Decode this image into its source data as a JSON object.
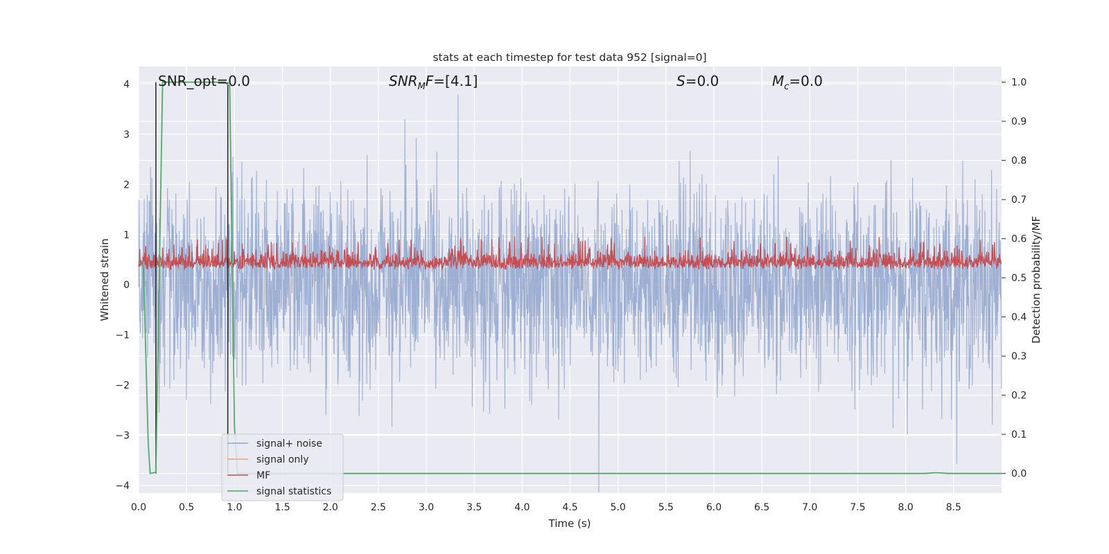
{
  "chart_data": {
    "type": "line",
    "title": "stats at each timestep for test data 952 [signal=0]",
    "xlabel": "Time (s)",
    "ylabel": "Whitened strain",
    "y2label": "Detection probability/MF",
    "xlim": [
      0,
      9.0
    ],
    "ylim": [
      -4.15,
      4.35
    ],
    "y2lim": [
      -0.05,
      1.04
    ],
    "xticks": [
      0.0,
      0.5,
      1.0,
      1.5,
      2.0,
      2.5,
      3.0,
      3.5,
      4.0,
      4.5,
      5.0,
      5.5,
      6.0,
      6.5,
      7.0,
      7.5,
      8.0,
      8.5
    ],
    "xtick_labels": [
      "0.0",
      "0.5",
      "1.0",
      "1.5",
      "2.0",
      "2.5",
      "3.0",
      "3.5",
      "4.0",
      "4.5",
      "5.0",
      "5.5",
      "6.0",
      "6.5",
      "7.0",
      "7.5",
      "8.0",
      "8.5"
    ],
    "yticks": [
      4,
      3,
      2,
      1,
      0,
      -1,
      -2,
      -3,
      -4
    ],
    "ytick_labels": [
      "4",
      "3",
      "2",
      "1",
      "0",
      "−1",
      "−2",
      "−3",
      "−4"
    ],
    "y2ticks": [
      1.0,
      0.9,
      0.8,
      0.7,
      0.6,
      0.5,
      0.4,
      0.3,
      0.2,
      0.1,
      0.0
    ],
    "y2tick_labels": [
      "1.0",
      "0.9",
      "0.8",
      "0.7",
      "0.6",
      "0.5",
      "0.4",
      "0.3",
      "0.2",
      "0.1",
      "0.0"
    ],
    "grid": true,
    "legend_position": "bottom-left",
    "annotations": [
      {
        "text": "SNR_opt=0.0",
        "x": 0.19
      },
      {
        "text": "SNR_MF=[4.1]",
        "x": 2.6
      },
      {
        "text": "S=0.0",
        "x": 5.6
      },
      {
        "text": "M_c=0.0",
        "x": 6.6
      }
    ],
    "series": [
      {
        "name": "signal+ noise",
        "color": "#8fa4cc",
        "kind": "noise",
        "amplitude_sd": 1.0,
        "peak_max": 4.0,
        "peak_min": -3.8,
        "axis": "left"
      },
      {
        "name": "signal only",
        "color": "#e8a07c",
        "kind": "flat",
        "axis": "left"
      },
      {
        "name": "MF",
        "color": "#c44e52",
        "kind": "mf",
        "axis": "right",
        "typical_range": [
          0.5,
          0.58
        ]
      },
      {
        "name": "signal statistics",
        "color": "#55a868",
        "kind": "line",
        "axis": "right",
        "x": [
          0.0,
          0.05,
          0.1,
          0.12,
          0.18,
          0.25,
          0.9,
          0.95,
          1.0,
          1.03,
          8.2,
          8.32,
          8.45,
          9.0
        ],
        "y": [
          0.54,
          0.53,
          0.08,
          0.0,
          0.003,
          1.0,
          1.0,
          0.99,
          0.12,
          0.0,
          0.0,
          0.002,
          0.0,
          0.0
        ]
      }
    ],
    "vertical_markers": [
      {
        "x": 0.18,
        "y0": 0.0,
        "y1": 1.0,
        "color": "#222222",
        "axis": "right"
      },
      {
        "x": 0.93,
        "y0": 0.0,
        "y1": 1.0,
        "color": "#222222",
        "axis": "right"
      }
    ]
  }
}
